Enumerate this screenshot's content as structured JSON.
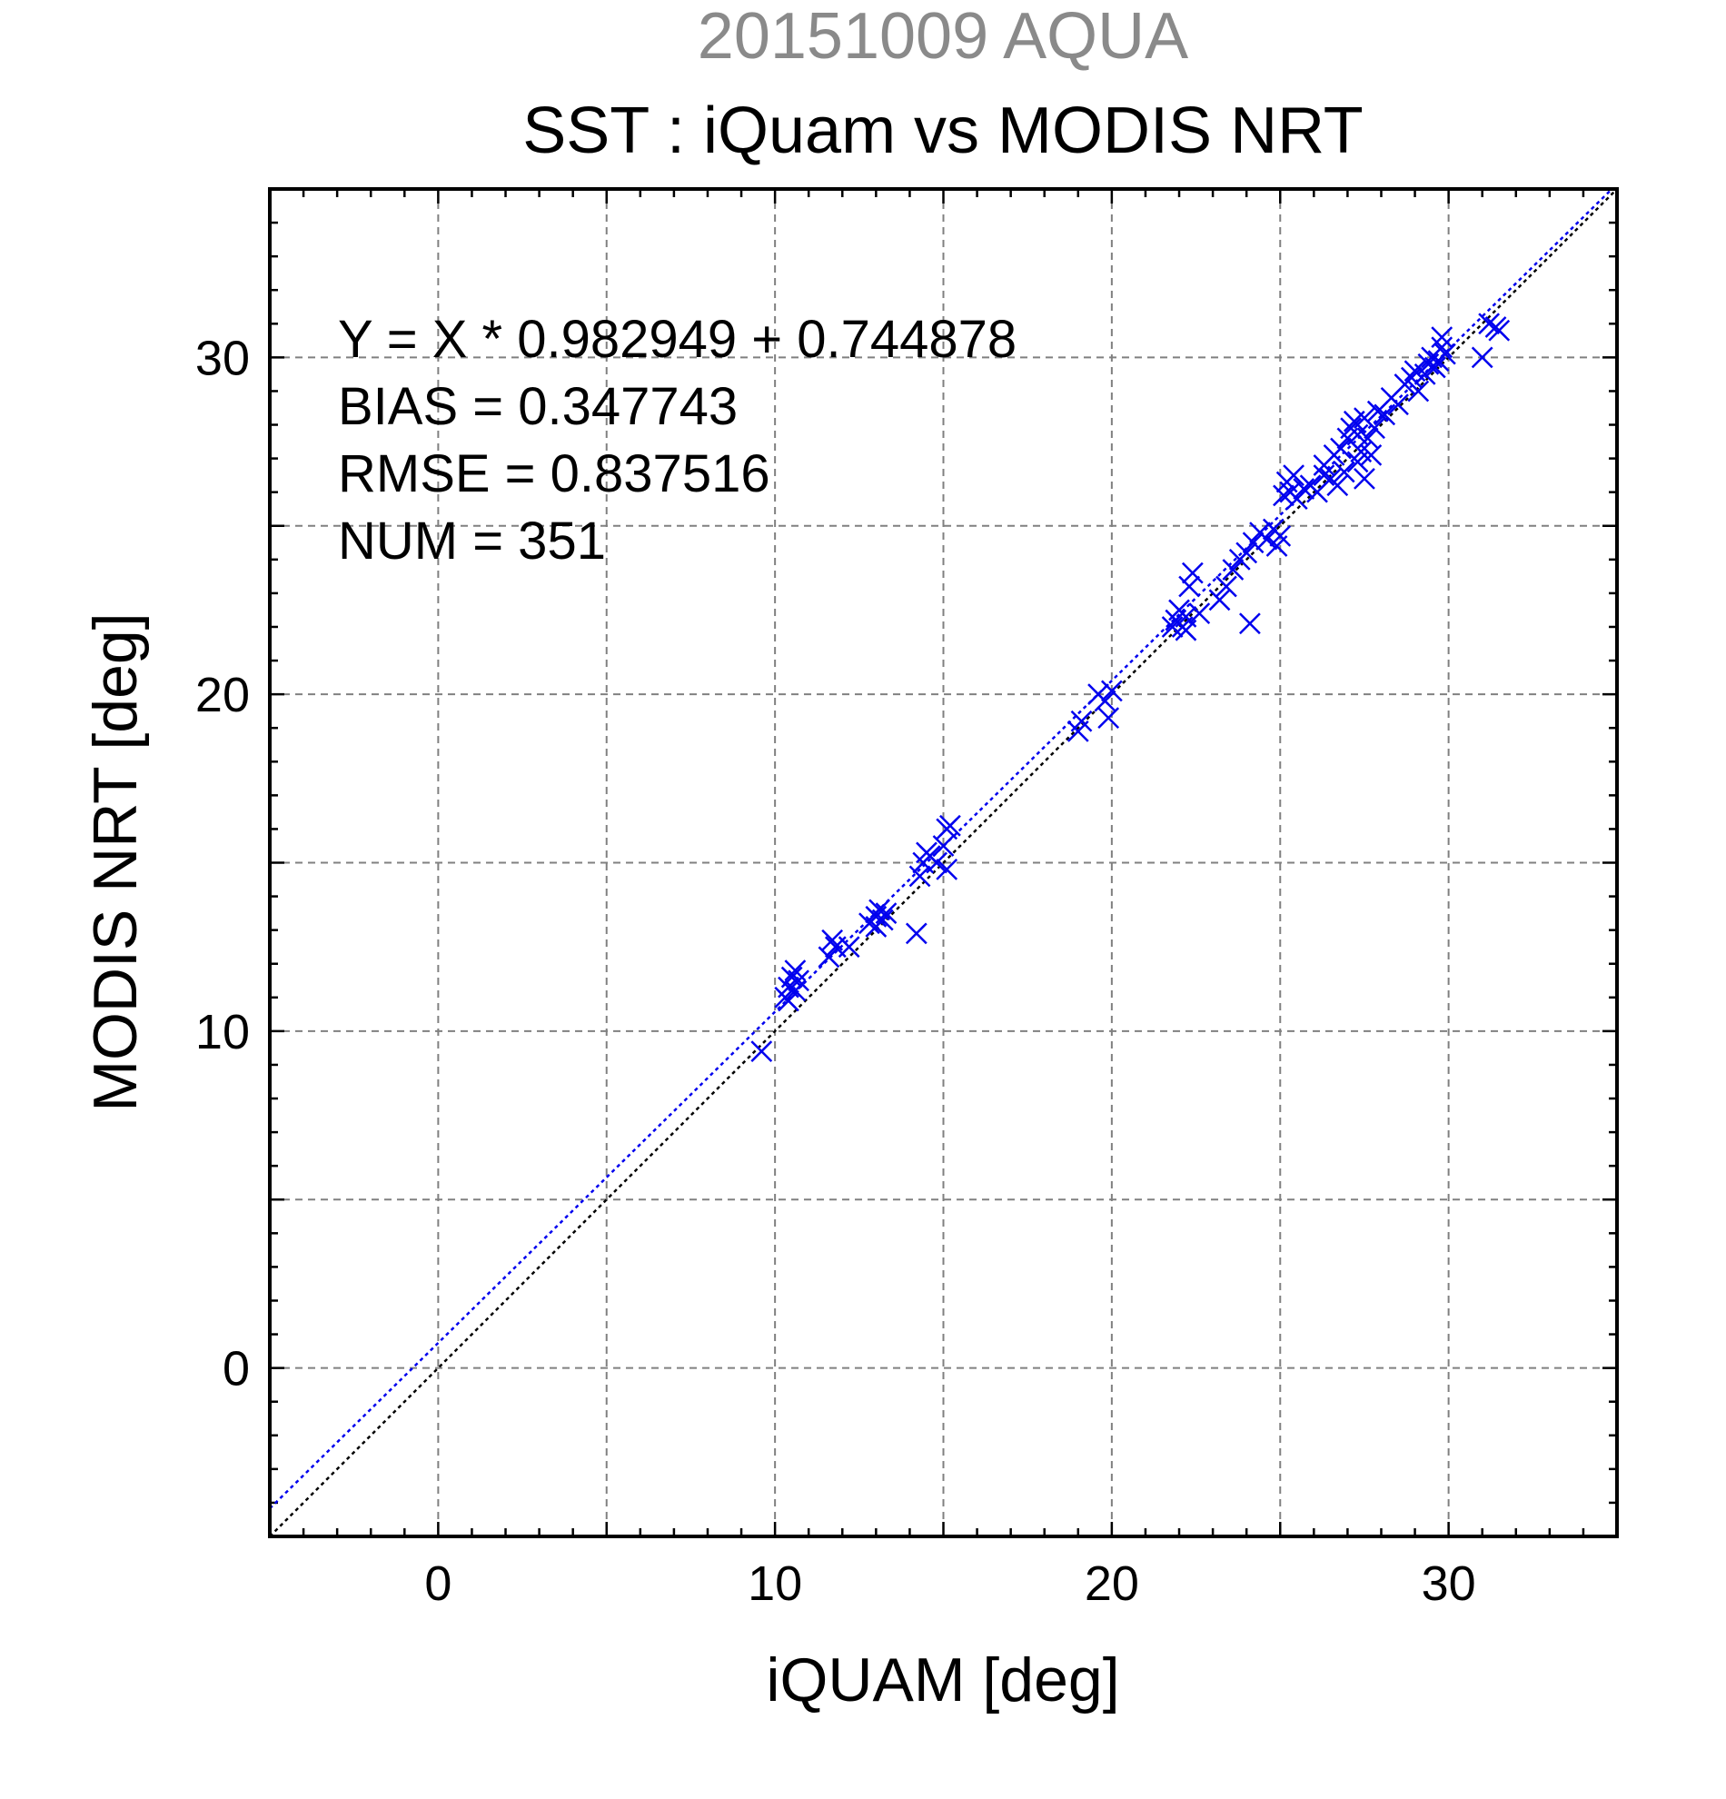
{
  "chart_data": {
    "type": "scatter",
    "suptitle": "20151009 AQUA",
    "title": "SST : iQuam vs MODIS NRT",
    "xlabel": "iQUAM [deg]",
    "ylabel": "MODIS NRT [deg]",
    "xlim": [
      -5,
      35
    ],
    "ylim": [
      -5,
      35
    ],
    "xticks": [
      0,
      10,
      20,
      30
    ],
    "yticks": [
      0,
      10,
      20,
      30
    ],
    "grid": true,
    "grid_step": 5,
    "marker": "x",
    "colors": {
      "points": "#0000ee",
      "fit_line": "#0000ee",
      "identity_line": "#000000",
      "suptitle": "#8a8a8a"
    },
    "stats": [
      "Y = X * 0.982949 + 0.744878",
      "BIAS = 0.347743",
      "RMSE = 0.837516",
      "NUM = 351"
    ],
    "fit": {
      "slope": 0.982949,
      "intercept": 0.744878,
      "style": "dotted"
    },
    "identity": {
      "slope": 1,
      "intercept": 0,
      "style": "dotted"
    },
    "points": [
      [
        9.6,
        9.4
      ],
      [
        10.3,
        11.0
      ],
      [
        10.4,
        11.3
      ],
      [
        10.5,
        11.6
      ],
      [
        10.6,
        11.8
      ],
      [
        10.7,
        11.5
      ],
      [
        10.4,
        10.9
      ],
      [
        10.6,
        11.2
      ],
      [
        11.6,
        12.2
      ],
      [
        11.7,
        12.7
      ],
      [
        11.8,
        12.5
      ],
      [
        12.2,
        12.5
      ],
      [
        12.8,
        13.2
      ],
      [
        13.0,
        13.4
      ],
      [
        13.1,
        13.6
      ],
      [
        13.3,
        13.5
      ],
      [
        13.0,
        13.1
      ],
      [
        13.2,
        13.3
      ],
      [
        14.2,
        12.9
      ],
      [
        14.3,
        14.6
      ],
      [
        14.4,
        15.0
      ],
      [
        14.5,
        15.3
      ],
      [
        14.6,
        15.2
      ],
      [
        14.8,
        15.0
      ],
      [
        15.1,
        14.8
      ],
      [
        15.1,
        16.0
      ],
      [
        15.2,
        16.1
      ],
      [
        15.0,
        15.5
      ],
      [
        19.0,
        18.9
      ],
      [
        19.1,
        19.2
      ],
      [
        19.6,
        20.0
      ],
      [
        19.8,
        19.8
      ],
      [
        19.9,
        19.3
      ],
      [
        20.0,
        20.1
      ],
      [
        21.9,
        22.2
      ],
      [
        22.0,
        22.5
      ],
      [
        22.1,
        22.0
      ],
      [
        22.2,
        22.3
      ],
      [
        22.3,
        23.2
      ],
      [
        22.4,
        23.6
      ],
      [
        22.2,
        21.9
      ],
      [
        22.6,
        22.4
      ],
      [
        21.8,
        22.0
      ],
      [
        23.2,
        22.8
      ],
      [
        23.4,
        23.2
      ],
      [
        23.6,
        23.7
      ],
      [
        23.8,
        24.0
      ],
      [
        24.0,
        24.2
      ],
      [
        24.1,
        22.1
      ],
      [
        24.2,
        24.5
      ],
      [
        24.4,
        24.8
      ],
      [
        24.6,
        24.6
      ],
      [
        24.8,
        24.9
      ],
      [
        24.9,
        24.4
      ],
      [
        25.0,
        24.7
      ],
      [
        25.1,
        25.9
      ],
      [
        25.2,
        26.3
      ],
      [
        25.3,
        26.0
      ],
      [
        25.4,
        26.5
      ],
      [
        25.5,
        25.8
      ],
      [
        25.7,
        26.1
      ],
      [
        25.9,
        26.2
      ],
      [
        26.1,
        26.0
      ],
      [
        26.3,
        26.5
      ],
      [
        26.5,
        26.4
      ],
      [
        26.7,
        26.2
      ],
      [
        26.9,
        26.6
      ],
      [
        26.3,
        26.8
      ],
      [
        26.6,
        27.1
      ],
      [
        26.8,
        27.3
      ],
      [
        27.0,
        27.6
      ],
      [
        27.1,
        27.9
      ],
      [
        27.2,
        28.1
      ],
      [
        27.3,
        27.7
      ],
      [
        27.4,
        27.2
      ],
      [
        27.5,
        26.4
      ],
      [
        27.5,
        28.2
      ],
      [
        27.6,
        27.6
      ],
      [
        27.7,
        27.1
      ],
      [
        27.8,
        27.9
      ],
      [
        27.9,
        28.4
      ],
      [
        27.3,
        26.9
      ],
      [
        28.1,
        28.3
      ],
      [
        28.3,
        28.8
      ],
      [
        28.5,
        28.6
      ],
      [
        28.7,
        29.2
      ],
      [
        28.9,
        29.4
      ],
      [
        29.0,
        29.6
      ],
      [
        29.1,
        29.0
      ],
      [
        29.3,
        29.5
      ],
      [
        29.4,
        29.8
      ],
      [
        29.5,
        30.0
      ],
      [
        29.6,
        29.7
      ],
      [
        29.7,
        29.9
      ],
      [
        29.8,
        30.3
      ],
      [
        29.9,
        30.1
      ],
      [
        29.8,
        30.6
      ],
      [
        31.0,
        30.0
      ],
      [
        31.2,
        31.0
      ],
      [
        31.4,
        30.9
      ],
      [
        31.5,
        30.8
      ]
    ]
  }
}
